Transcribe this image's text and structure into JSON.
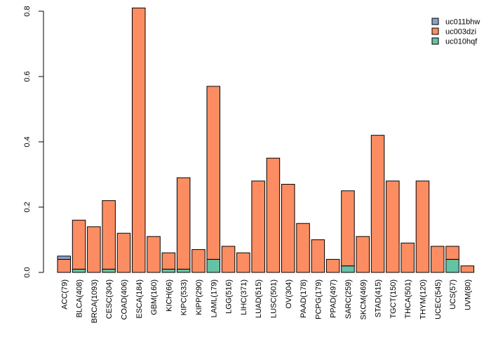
{
  "chart_data": {
    "type": "bar",
    "stacked": true,
    "title": "",
    "xlabel": "",
    "ylabel": "",
    "ylim": [
      0,
      0.8
    ],
    "yticks": [
      0.0,
      0.2,
      0.4,
      0.6,
      0.8
    ],
    "ytick_labels": [
      "0.0",
      "0.2",
      "0.4",
      "0.6",
      "0.8"
    ],
    "legend_position": "top-right",
    "categories": [
      "ACC(79)",
      "BLCA(408)",
      "BRCA(1093)",
      "CESC(304)",
      "COAD(406)",
      "ESCA(184)",
      "GBM(160)",
      "KICH(66)",
      "KIPC(533)",
      "KIPP(290)",
      "LAML(179)",
      "LGG(516)",
      "LIHC(371)",
      "LUAD(515)",
      "LUSC(501)",
      "OV(304)",
      "PAAD(178)",
      "PCPG(179)",
      "PPAD(497)",
      "SARC(259)",
      "SKCM(469)",
      "STAD(415)",
      "TGCT(150)",
      "THCA(501)",
      "THYM(120)",
      "UCEC(545)",
      "UCS(57)",
      "UVM(80)"
    ],
    "series": [
      {
        "name": "uc010hqf",
        "color": "#66c2a5",
        "values": [
          0,
          0.01,
          0,
          0.01,
          0,
          0,
          0,
          0.01,
          0.01,
          0,
          0.04,
          0,
          0,
          0,
          0,
          0,
          0,
          0,
          0,
          0.02,
          0,
          0,
          0,
          0,
          0,
          0,
          0.04,
          0
        ]
      },
      {
        "name": "uc003dzi",
        "color": "#fc8d62",
        "values": [
          0.04,
          0.15,
          0.14,
          0.21,
          0.12,
          0.81,
          0.11,
          0.05,
          0.28,
          0.07,
          0.53,
          0.08,
          0.06,
          0.28,
          0.35,
          0.27,
          0.15,
          0.1,
          0.04,
          0.23,
          0.11,
          0.42,
          0.28,
          0.09,
          0.28,
          0.08,
          0.04,
          0.02
        ]
      },
      {
        "name": "uc011bhw",
        "color": "#8da0cb",
        "values": [
          0.01,
          0,
          0,
          0,
          0,
          0,
          0,
          0,
          0,
          0,
          0,
          0,
          0,
          0,
          0,
          0,
          0,
          0,
          0,
          0,
          0,
          0,
          0,
          0,
          0,
          0,
          0,
          0
        ]
      }
    ],
    "legend": [
      {
        "name": "uc011bhw",
        "color": "#8da0cb"
      },
      {
        "name": "uc003dzi",
        "color": "#fc8d62"
      },
      {
        "name": "uc010hqf",
        "color": "#66c2a5"
      }
    ]
  }
}
